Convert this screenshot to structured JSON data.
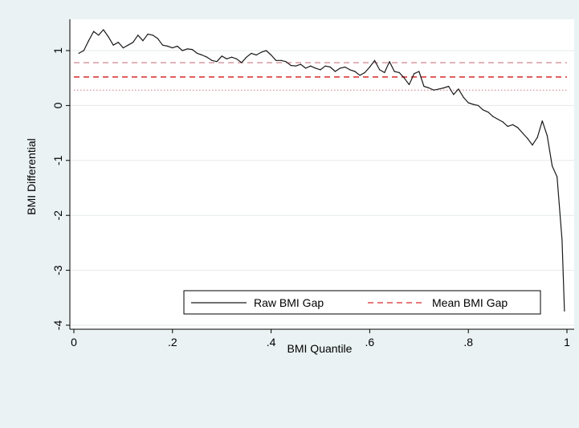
{
  "chart_data": {
    "type": "line",
    "xlabel": "BMI Quantile",
    "ylabel": "BMI Differential",
    "xlim": [
      0,
      1
    ],
    "ylim": [
      -4,
      1.5
    ],
    "x_ticks": [
      {
        "value": 0,
        "label": "0"
      },
      {
        "value": 0.2,
        "label": ".2"
      },
      {
        "value": 0.4,
        "label": ".4"
      },
      {
        "value": 0.6,
        "label": ".6"
      },
      {
        "value": 0.8,
        "label": ".8"
      },
      {
        "value": 1,
        "label": "1"
      }
    ],
    "y_ticks": [
      {
        "value": 1,
        "label": "1"
      },
      {
        "value": 0,
        "label": "0"
      },
      {
        "value": -1,
        "label": "-1"
      },
      {
        "value": -2,
        "label": "-2"
      },
      {
        "value": -3,
        "label": "-3"
      },
      {
        "value": -4,
        "label": "-4"
      }
    ],
    "grid": true,
    "legend_position": "bottom-right",
    "series": [
      {
        "name": "Raw BMI Gap",
        "color": "#1a1a1a",
        "style": "solid",
        "x": [
          0.01,
          0.02,
          0.03,
          0.04,
          0.05,
          0.06,
          0.07,
          0.08,
          0.09,
          0.1,
          0.11,
          0.12,
          0.13,
          0.14,
          0.15,
          0.16,
          0.17,
          0.18,
          0.19,
          0.2,
          0.21,
          0.22,
          0.23,
          0.24,
          0.25,
          0.26,
          0.27,
          0.28,
          0.29,
          0.3,
          0.31,
          0.32,
          0.33,
          0.34,
          0.35,
          0.36,
          0.37,
          0.38,
          0.39,
          0.4,
          0.41,
          0.42,
          0.43,
          0.44,
          0.45,
          0.46,
          0.47,
          0.48,
          0.49,
          0.5,
          0.51,
          0.52,
          0.53,
          0.54,
          0.55,
          0.56,
          0.57,
          0.58,
          0.59,
          0.6,
          0.61,
          0.62,
          0.63,
          0.64,
          0.65,
          0.66,
          0.67,
          0.68,
          0.69,
          0.7,
          0.71,
          0.72,
          0.73,
          0.74,
          0.75,
          0.76,
          0.77,
          0.78,
          0.79,
          0.8,
          0.81,
          0.82,
          0.83,
          0.84,
          0.85,
          0.86,
          0.87,
          0.88,
          0.89,
          0.9,
          0.91,
          0.92,
          0.93,
          0.94,
          0.95,
          0.96,
          0.97,
          0.98,
          0.99
        ],
        "values": [
          0.95,
          1.0,
          1.18,
          1.35,
          1.28,
          1.38,
          1.25,
          1.1,
          1.15,
          1.05,
          1.1,
          1.15,
          1.28,
          1.18,
          1.3,
          1.28,
          1.22,
          1.1,
          1.08,
          1.05,
          1.08,
          1.0,
          1.03,
          1.02,
          0.95,
          0.92,
          0.88,
          0.82,
          0.8,
          0.9,
          0.85,
          0.88,
          0.85,
          0.78,
          0.88,
          0.95,
          0.92,
          0.97,
          1.0,
          0.92,
          0.82,
          0.82,
          0.8,
          0.73,
          0.72,
          0.75,
          0.68,
          0.72,
          0.68,
          0.65,
          0.72,
          0.7,
          0.62,
          0.68,
          0.7,
          0.65,
          0.62,
          0.55,
          0.6,
          0.7,
          0.82,
          0.65,
          0.6,
          0.8,
          0.62,
          0.6,
          0.5,
          0.38,
          0.58,
          0.62,
          0.35,
          0.32,
          0.28,
          0.3,
          0.32,
          0.35,
          0.2,
          0.3,
          0.15,
          0.05,
          0.02,
          0.0,
          -0.08,
          -0.12,
          -0.2,
          -0.25,
          -0.3,
          -0.38,
          -0.35,
          -0.4,
          -0.5,
          -0.6,
          -0.72,
          -0.58,
          -0.28,
          -0.55,
          -1.1,
          -1.3,
          -2.45
        ]
      },
      {
        "name": "Mean BMI Gap",
        "color": "#d62b2b",
        "style": "dashed",
        "value": 0.52
      },
      {
        "color": "#c97a84",
        "style": "dashed",
        "value": 0.78
      },
      {
        "color": "#c97a84",
        "style": "dotted",
        "value": 0.28
      }
    ]
  }
}
